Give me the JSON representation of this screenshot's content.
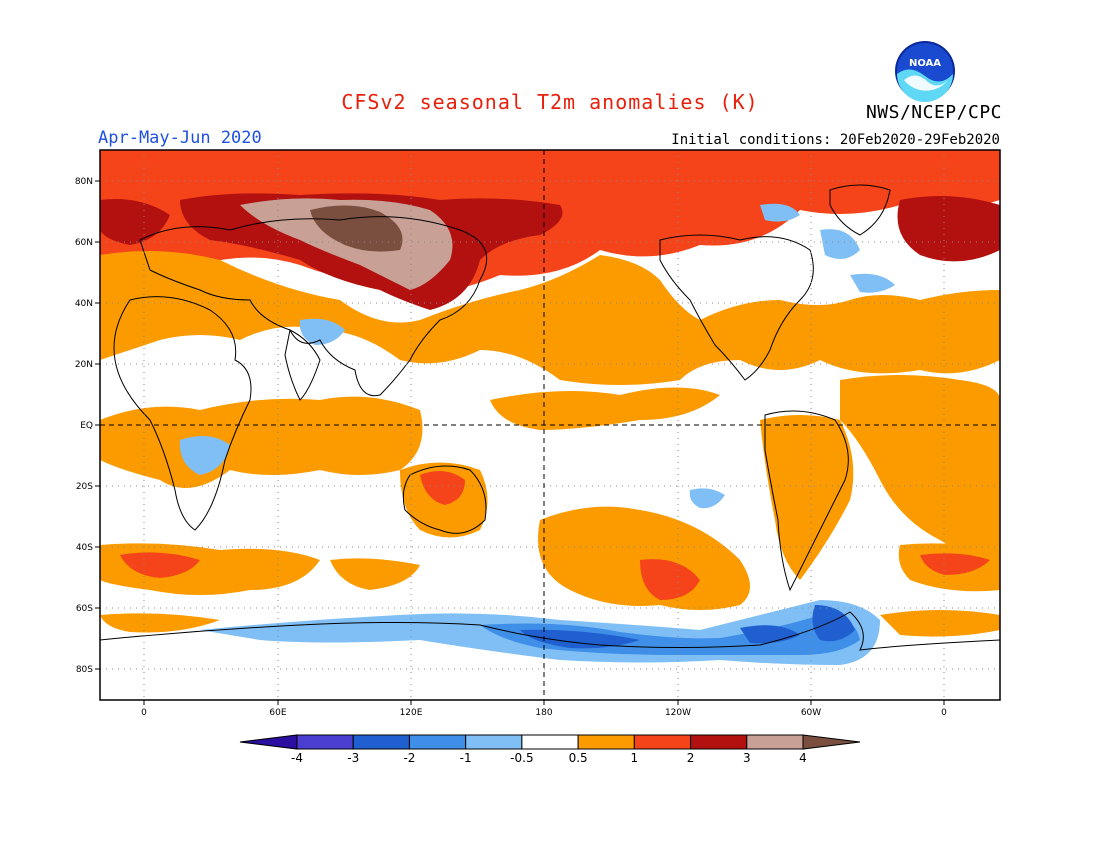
{
  "title": "CFSv2 seasonal T2m anomalies (K)",
  "season": "Apr-May-Jun 2020",
  "initial_conditions": "Initial conditions: 20Feb2020-29Feb2020",
  "agency": "NWS/NCEP/CPC",
  "logo_text": "NOAA",
  "lat_labels": [
    "80N",
    "60N",
    "40N",
    "20N",
    "EQ",
    "20S",
    "40S",
    "60S",
    "80S"
  ],
  "lon_labels": [
    "0",
    "60E",
    "120E",
    "180",
    "120W",
    "60W",
    "0"
  ],
  "colorbar": {
    "labels": [
      "-4",
      "-3",
      "-2",
      "-1",
      "-0.5",
      "0.5",
      "1",
      "2",
      "3",
      "4"
    ],
    "colors": [
      "#2a0fa0",
      "#4a3fd0",
      "#1f5fd0",
      "#3f8fe8",
      "#7fbff5",
      "#ffffff",
      "#fb9b00",
      "#f5441a",
      "#b31010",
      "#c8a095",
      "#7a4f3f"
    ]
  }
}
